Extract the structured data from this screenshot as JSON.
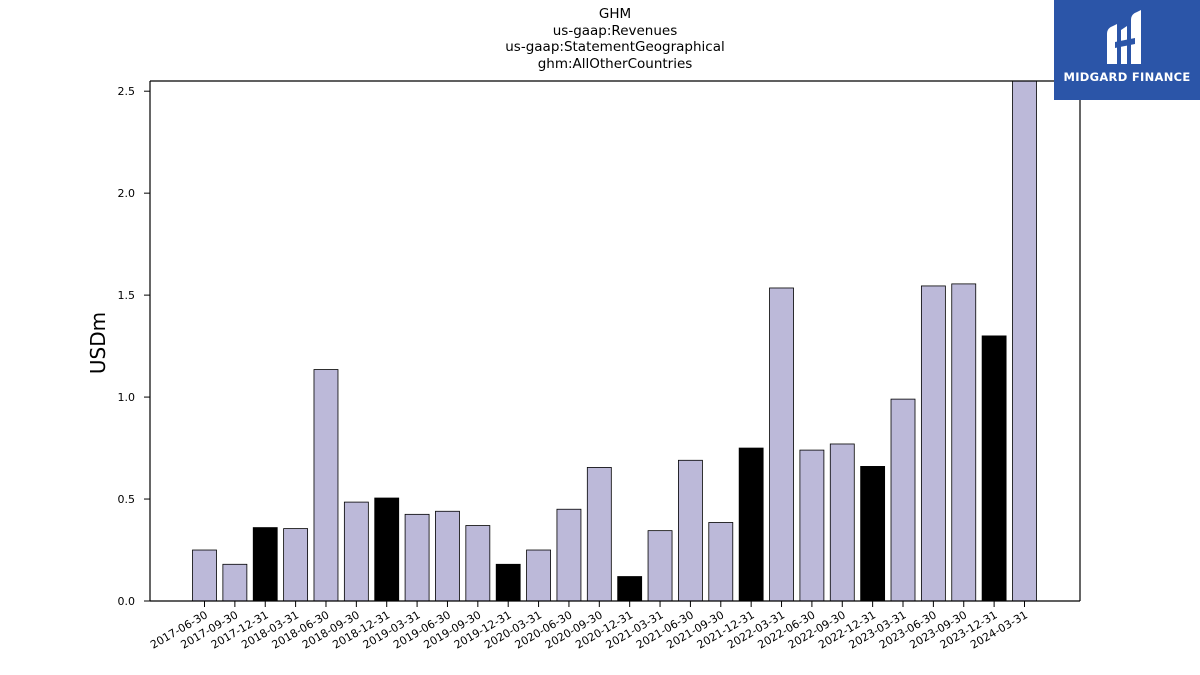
{
  "title_lines": [
    "GHM",
    "us-gaap:Revenues",
    "us-gaap:StatementGeographical",
    "ghm:AllOtherCountries"
  ],
  "logo": {
    "text": "MIDGARD FINANCE",
    "bg_color": "#2b55a8"
  },
  "chart_data": {
    "type": "bar",
    "ylabel": "USDm",
    "xlabel": "",
    "ylim": [
      0,
      2.55
    ],
    "yticks": [
      "0.0",
      "0.5",
      "1.0",
      "1.5",
      "2.0",
      "2.5"
    ],
    "grid": false,
    "colors": {
      "quarter": "#bcb9d9",
      "year_end": "#000000",
      "edge": "#000000"
    },
    "categories": [
      "2017-06-30",
      "2017-09-30",
      "2017-12-31",
      "2018-03-31",
      "2018-06-30",
      "2018-09-30",
      "2018-12-31",
      "2019-03-31",
      "2019-06-30",
      "2019-09-30",
      "2019-12-31",
      "2020-03-31",
      "2020-06-30",
      "2020-09-30",
      "2020-12-31",
      "2021-03-31",
      "2021-06-30",
      "2021-09-30",
      "2021-12-31",
      "2022-03-31",
      "2022-06-30",
      "2022-09-30",
      "2022-12-31",
      "2023-03-31",
      "2023-06-30",
      "2023-09-30",
      "2023-12-31",
      "2024-03-31"
    ],
    "values": [
      0.25,
      0.18,
      0.36,
      0.355,
      1.135,
      0.485,
      0.505,
      0.425,
      0.44,
      0.37,
      0.18,
      0.25,
      0.45,
      0.655,
      0.12,
      0.345,
      0.69,
      0.385,
      0.75,
      1.535,
      0.74,
      0.77,
      0.66,
      0.99,
      1.545,
      1.555,
      1.3,
      2.55
    ]
  }
}
